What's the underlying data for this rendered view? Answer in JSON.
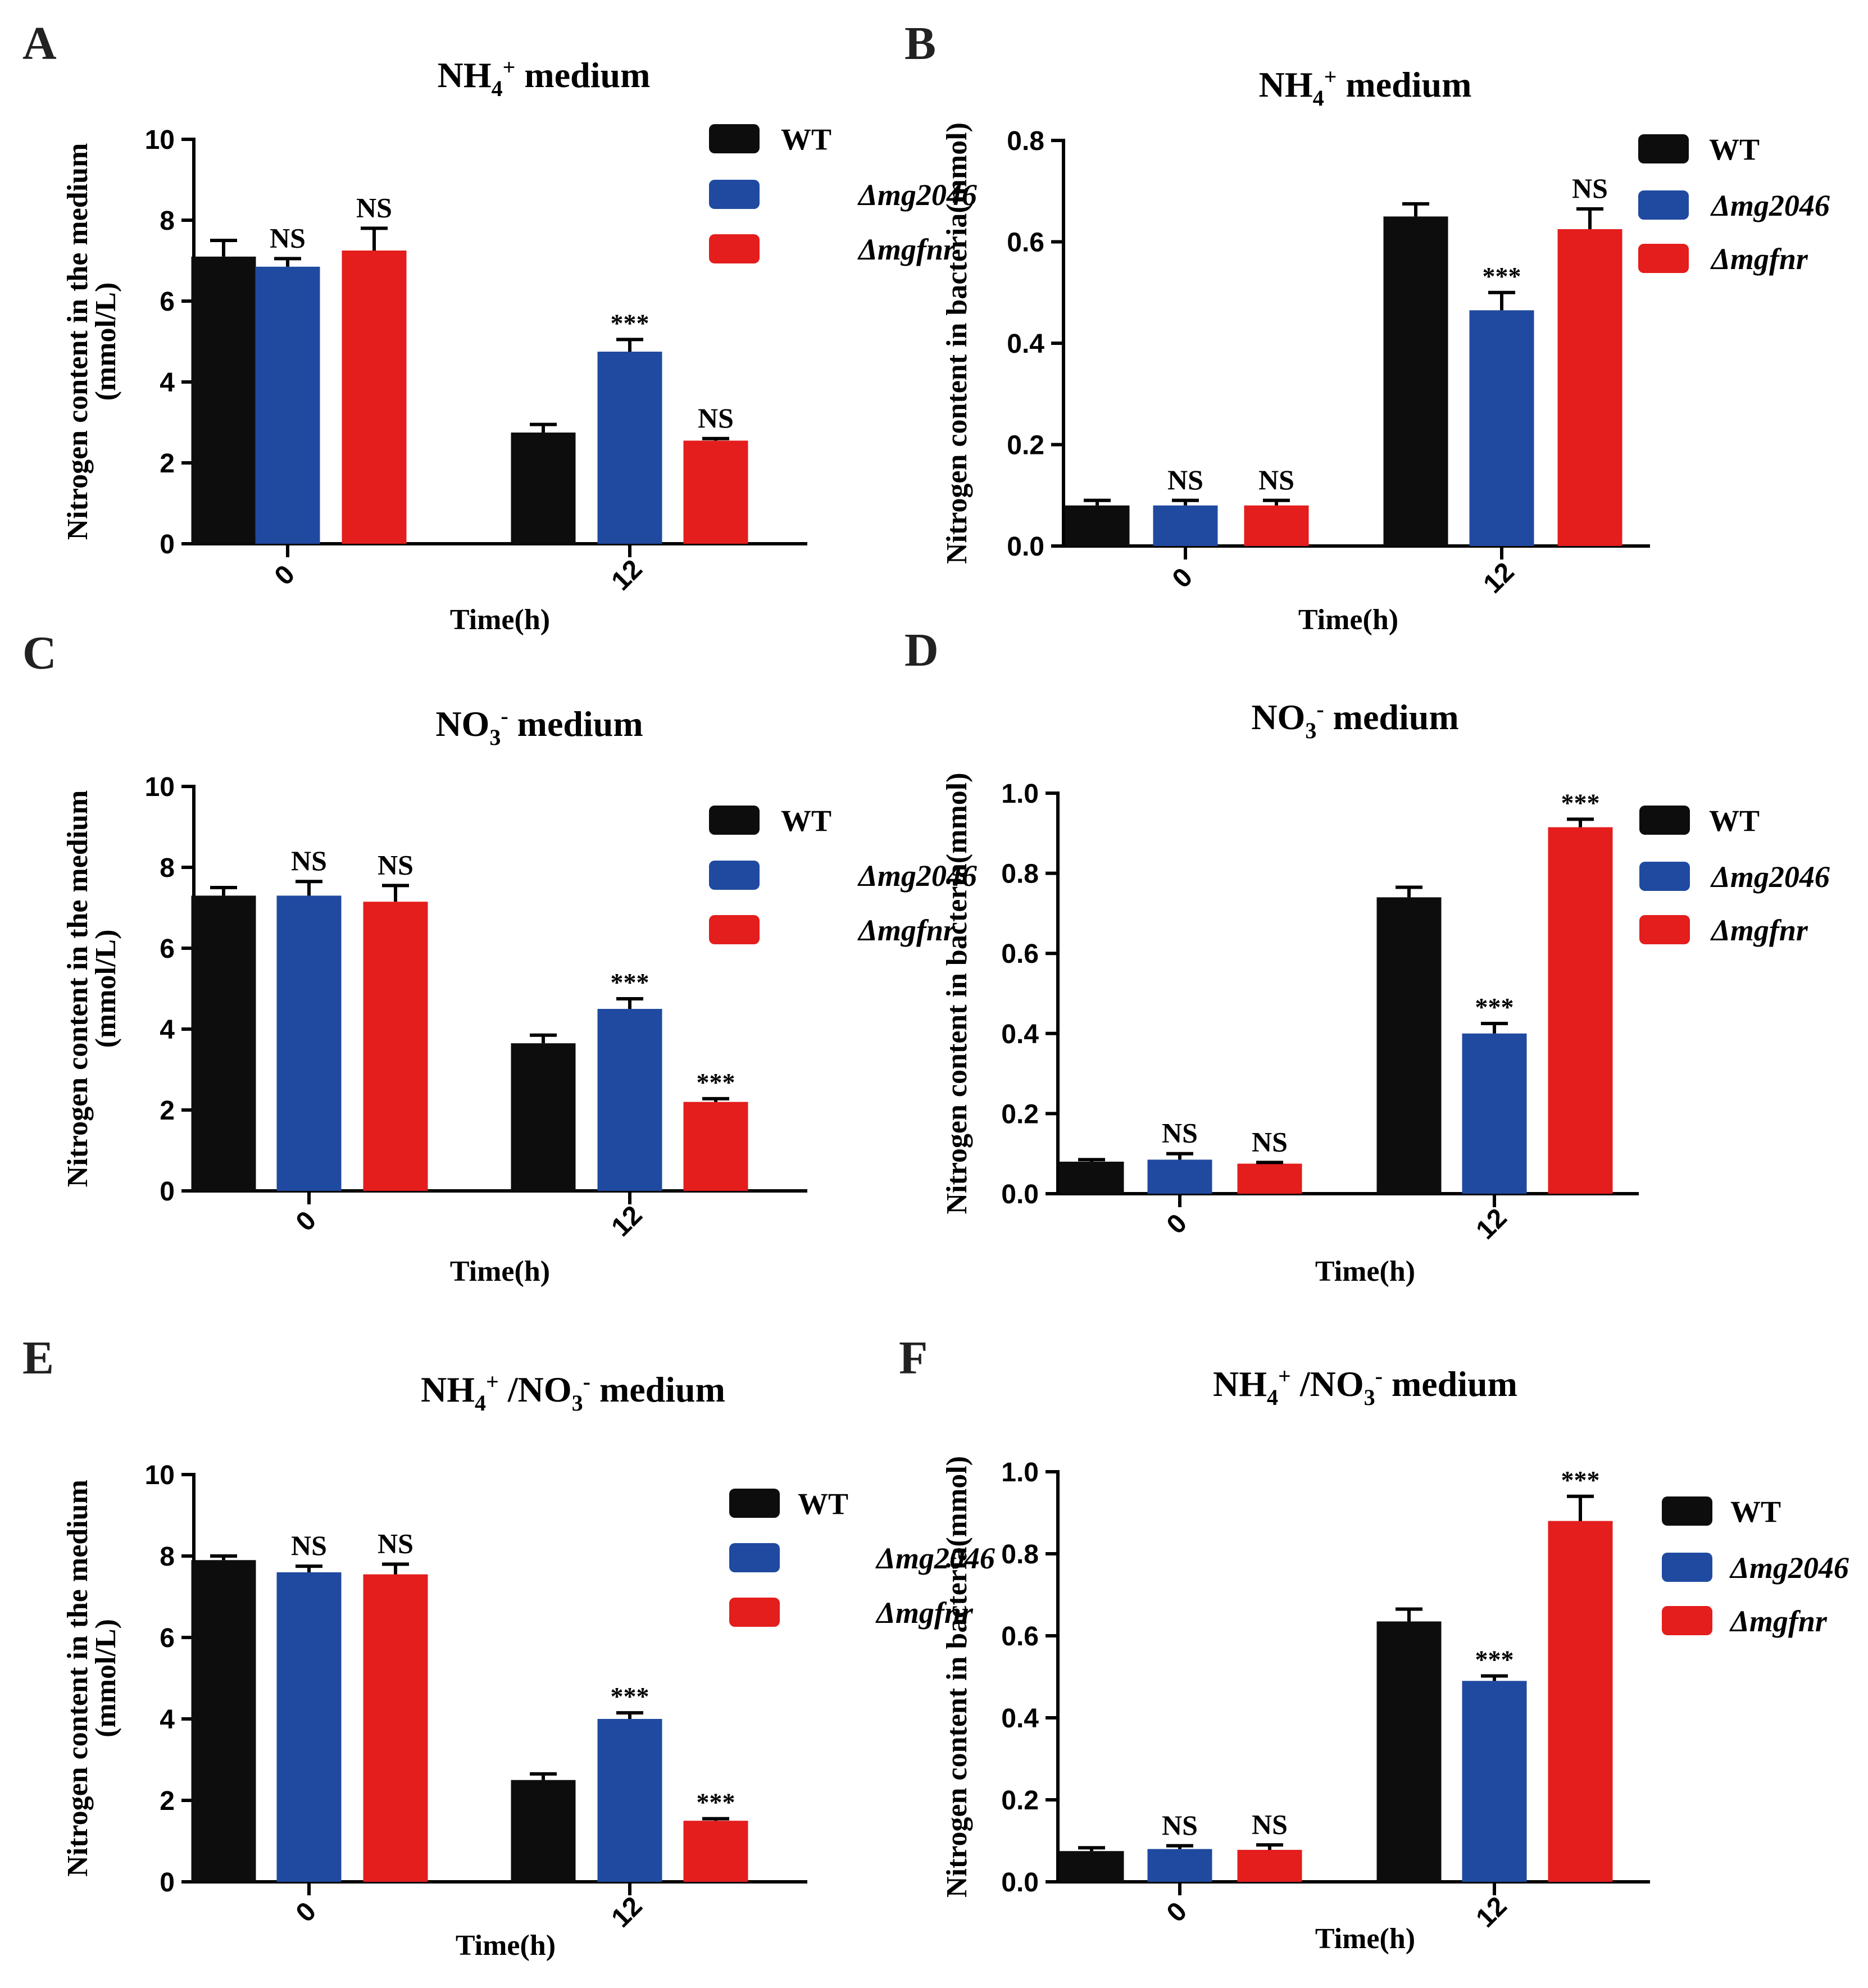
{
  "colors": {
    "WT": "#0d0d0d",
    "mg2046": "#1f4aa0",
    "mgfnr": "#e41d1d"
  },
  "chart_data": [
    {
      "panel": "A",
      "type": "bar",
      "title_parts": [
        "NH",
        "4",
        "+",
        " medium"
      ],
      "xlabel": "Time(h)",
      "ylabel_lines": [
        "Nitrogen content in the medium",
        "(mmol/L)"
      ],
      "categories": [
        "0",
        "12"
      ],
      "ylim": [
        0,
        10
      ],
      "yticks": [
        "0",
        "2",
        "4",
        "6",
        "8",
        "10"
      ],
      "series": [
        {
          "name": "WT",
          "key": "WT",
          "values": [
            7.1,
            2.75
          ],
          "errors": [
            0.4,
            0.2
          ],
          "annotations": [
            "",
            ""
          ]
        },
        {
          "name": "Δmg2046",
          "key": "mg2046",
          "values": [
            6.85,
            4.75
          ],
          "errors": [
            0.2,
            0.3
          ],
          "annotations": [
            "NS",
            "***"
          ]
        },
        {
          "name": "Δmgfnr",
          "key": "mgfnr",
          "values": [
            7.25,
            2.55
          ],
          "errors": [
            0.55,
            0.05
          ],
          "annotations": [
            "NS",
            "NS"
          ]
        }
      ]
    },
    {
      "panel": "B",
      "type": "bar",
      "title_parts": [
        "NH",
        "4",
        "+",
        " medium"
      ],
      "xlabel": "Time(h)",
      "ylabel_lines": [
        "Nitrogen content in bacteria(mmol)"
      ],
      "categories": [
        "0",
        "12"
      ],
      "ylim": [
        0,
        0.8
      ],
      "yticks": [
        "0.0",
        "0.2",
        "0.4",
        "0.6",
        "0.8"
      ],
      "series": [
        {
          "name": "WT",
          "key": "WT",
          "values": [
            0.08,
            0.65
          ],
          "errors": [
            0.01,
            0.025
          ],
          "annotations": [
            "",
            ""
          ]
        },
        {
          "name": "Δmg2046",
          "key": "mg2046",
          "values": [
            0.08,
            0.465
          ],
          "errors": [
            0.01,
            0.035
          ],
          "annotations": [
            "NS",
            "***"
          ]
        },
        {
          "name": "Δmgfnr",
          "key": "mgfnr",
          "values": [
            0.08,
            0.625
          ],
          "errors": [
            0.01,
            0.04
          ],
          "annotations": [
            "NS",
            "NS"
          ]
        }
      ]
    },
    {
      "panel": "C",
      "type": "bar",
      "title_parts": [
        "NO",
        "3",
        "-",
        " medium"
      ],
      "xlabel": "Time(h)",
      "ylabel_lines": [
        "Nitrogen content in the medium",
        "(mmol/L)"
      ],
      "categories": [
        "0",
        "12"
      ],
      "ylim": [
        0,
        10
      ],
      "yticks": [
        "0",
        "2",
        "4",
        "6",
        "8",
        "10"
      ],
      "series": [
        {
          "name": "WT",
          "key": "WT",
          "values": [
            7.3,
            3.65
          ],
          "errors": [
            0.2,
            0.2
          ],
          "annotations": [
            "",
            ""
          ]
        },
        {
          "name": "Δmg2046",
          "key": "mg2046",
          "values": [
            7.3,
            4.5
          ],
          "errors": [
            0.35,
            0.25
          ],
          "annotations": [
            "NS",
            "***"
          ]
        },
        {
          "name": "Δmgfnr",
          "key": "mgfnr",
          "values": [
            7.15,
            2.2
          ],
          "errors": [
            0.4,
            0.08
          ],
          "annotations": [
            "NS",
            "***"
          ]
        }
      ]
    },
    {
      "panel": "D",
      "type": "bar",
      "title_parts": [
        "NO",
        "3",
        "-",
        " medium"
      ],
      "xlabel": "Time(h)",
      "ylabel_lines": [
        "Nitrogen content in bacteria(mmol)"
      ],
      "categories": [
        "0",
        "12"
      ],
      "ylim": [
        0,
        1.0
      ],
      "yticks": [
        "0.0",
        "0.2",
        "0.4",
        "0.6",
        "0.8",
        "1.0"
      ],
      "series": [
        {
          "name": "WT",
          "key": "WT",
          "values": [
            0.08,
            0.74
          ],
          "errors": [
            0.005,
            0.025
          ],
          "annotations": [
            "",
            ""
          ]
        },
        {
          "name": "Δmg2046",
          "key": "mg2046",
          "values": [
            0.085,
            0.4
          ],
          "errors": [
            0.015,
            0.025
          ],
          "annotations": [
            "NS",
            "***"
          ]
        },
        {
          "name": "Δmgfnr",
          "key": "mgfnr",
          "values": [
            0.075,
            0.915
          ],
          "errors": [
            0.003,
            0.02
          ],
          "annotations": [
            "NS",
            "***"
          ]
        }
      ]
    },
    {
      "panel": "E",
      "type": "bar",
      "title_parts": [
        "NH",
        "4",
        "+",
        " /NO",
        "3",
        "-",
        " medium"
      ],
      "xlabel": "Time(h)",
      "ylabel_lines": [
        "Nitrogen content in the medium",
        "(mmol/L)"
      ],
      "categories": [
        "0",
        "12"
      ],
      "ylim": [
        0,
        10
      ],
      "yticks": [
        "0",
        "2",
        "4",
        "6",
        "8",
        "10"
      ],
      "series": [
        {
          "name": "WT",
          "key": "WT",
          "values": [
            7.9,
            2.5
          ],
          "errors": [
            0.1,
            0.15
          ],
          "annotations": [
            "",
            ""
          ]
        },
        {
          "name": "Δmg2046",
          "key": "mg2046",
          "values": [
            7.6,
            4.0
          ],
          "errors": [
            0.15,
            0.15
          ],
          "annotations": [
            "NS",
            "***"
          ]
        },
        {
          "name": "Δmgfnr",
          "key": "mgfnr",
          "values": [
            7.55,
            1.5
          ],
          "errors": [
            0.25,
            0.05
          ],
          "annotations": [
            "NS",
            "***"
          ]
        }
      ]
    },
    {
      "panel": "F",
      "type": "bar",
      "title_parts": [
        "NH",
        "4",
        "+",
        " /NO",
        "3",
        "-",
        " medium"
      ],
      "xlabel": "Time(h)",
      "ylabel_lines": [
        "Nitrogen content in bacteria(mmol)"
      ],
      "categories": [
        "0",
        "12"
      ],
      "ylim": [
        0,
        1.0
      ],
      "yticks": [
        "0.0",
        "0.2",
        "0.4",
        "0.6",
        "0.8",
        "1.0"
      ],
      "series": [
        {
          "name": "WT",
          "key": "WT",
          "values": [
            0.075,
            0.635
          ],
          "errors": [
            0.008,
            0.03
          ],
          "annotations": [
            "",
            ""
          ]
        },
        {
          "name": "Δmg2046",
          "key": "mg2046",
          "values": [
            0.08,
            0.49
          ],
          "errors": [
            0.008,
            0.012
          ],
          "annotations": [
            "NS",
            "***"
          ]
        },
        {
          "name": "Δmgfnr",
          "key": "mgfnr",
          "values": [
            0.078,
            0.88
          ],
          "errors": [
            0.012,
            0.06
          ],
          "annotations": [
            "NS",
            "***"
          ]
        }
      ]
    }
  ]
}
